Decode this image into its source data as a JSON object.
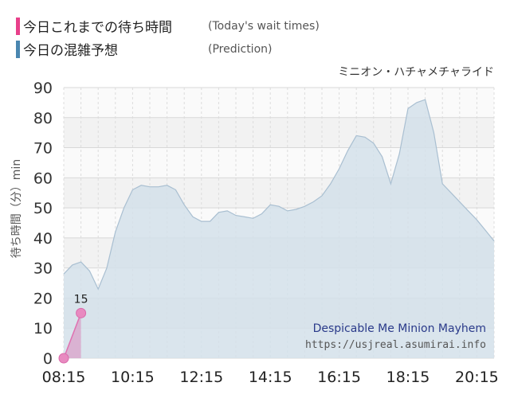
{
  "legend": [
    {
      "label": "今日これまでの待ち時間",
      "sub": "(Today's wait times)",
      "color": "#e8408a"
    },
    {
      "label": "今日の混雑予想",
      "sub": "(Prediction)",
      "color": "#4a86b0"
    }
  ],
  "ride_name_ja": "ミニオン・ハチャメチャライド",
  "ride_name_en": "Despicable Me Minion Mayhem",
  "source_url": "https://usjreal.asumirai.info",
  "chart_data": {
    "type": "area",
    "ylabel": "待ち時間（分）min",
    "ylim": [
      0,
      90
    ],
    "yticks": [
      0,
      10,
      20,
      30,
      40,
      50,
      60,
      70,
      80,
      90
    ],
    "xlim": [
      "08:15",
      "20:45"
    ],
    "xticks": [
      "08:15",
      "10:15",
      "12:15",
      "14:15",
      "16:15",
      "18:15",
      "20:15"
    ],
    "grid": true,
    "series": [
      {
        "name": "今日の混雑予想",
        "color": "#4a86b0",
        "points": [
          [
            "08:15",
            28
          ],
          [
            "08:30",
            31
          ],
          [
            "08:45",
            32
          ],
          [
            "09:00",
            29
          ],
          [
            "09:15",
            23
          ],
          [
            "09:30",
            30
          ],
          [
            "09:45",
            42
          ],
          [
            "10:00",
            50
          ],
          [
            "10:15",
            56
          ],
          [
            "10:30",
            57.5
          ],
          [
            "10:45",
            57
          ],
          [
            "11:00",
            57
          ],
          [
            "11:15",
            57.5
          ],
          [
            "11:30",
            56
          ],
          [
            "11:45",
            51
          ],
          [
            "12:00",
            47
          ],
          [
            "12:15",
            45.5
          ],
          [
            "12:30",
            45.5
          ],
          [
            "12:45",
            48.5
          ],
          [
            "13:00",
            49
          ],
          [
            "13:15",
            47.5
          ],
          [
            "13:30",
            47
          ],
          [
            "13:45",
            46.5
          ],
          [
            "14:00",
            48
          ],
          [
            "14:15",
            51
          ],
          [
            "14:30",
            50.5
          ],
          [
            "14:45",
            49
          ],
          [
            "15:00",
            49.5
          ],
          [
            "15:15",
            50.5
          ],
          [
            "15:30",
            52
          ],
          [
            "15:45",
            54
          ],
          [
            "16:00",
            58
          ],
          [
            "16:15",
            63
          ],
          [
            "16:30",
            69
          ],
          [
            "16:45",
            74
          ],
          [
            "17:00",
            73.5
          ],
          [
            "17:15",
            71.5
          ],
          [
            "17:30",
            67
          ],
          [
            "17:45",
            58
          ],
          [
            "18:00",
            68
          ],
          [
            "18:15",
            83
          ],
          [
            "18:30",
            85
          ],
          [
            "18:45",
            86
          ],
          [
            "19:00",
            75
          ],
          [
            "19:15",
            58
          ],
          [
            "19:30",
            55
          ],
          [
            "19:45",
            52
          ],
          [
            "20:00",
            49
          ],
          [
            "20:15",
            46
          ],
          [
            "20:30",
            42.5
          ],
          [
            "20:45",
            39
          ]
        ]
      },
      {
        "name": "今日これまでの待ち時間",
        "color": "#e8408a",
        "points": [
          [
            "08:15",
            0
          ],
          [
            "08:45",
            15
          ]
        ],
        "labels": [
          "",
          "15"
        ]
      }
    ]
  }
}
